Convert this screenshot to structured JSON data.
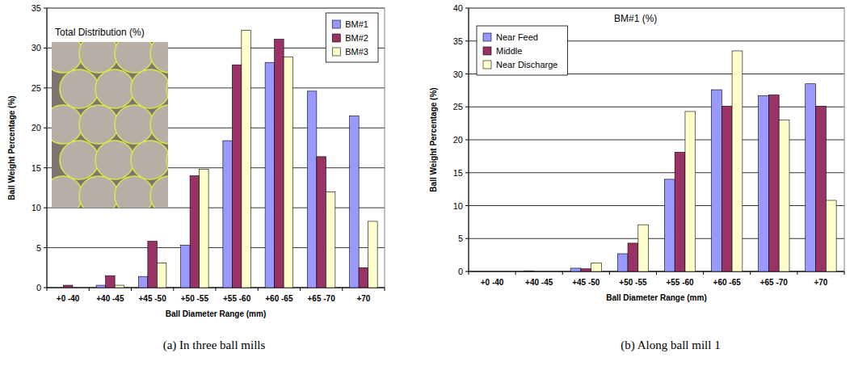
{
  "chart_data": [
    {
      "type": "bar",
      "title": "Total Distribution (%)",
      "caption": "(a) In three ball mills",
      "x_label": "Ball Diameter Range (mm)",
      "y_label": "Ball Weight Percentage (%)",
      "categories": [
        "+0 -40",
        "+40 -45",
        "+45 -50",
        "+50 -55",
        "+55 -60",
        "+60 -65",
        "+65 -70",
        "+70"
      ],
      "series": [
        {
          "name": "BM#1",
          "color": "#9999ff",
          "values": [
            0,
            0.3,
            1.4,
            5.3,
            18.4,
            28.2,
            24.6,
            21.5
          ]
        },
        {
          "name": "BM#2",
          "color": "#993366",
          "values": [
            0.3,
            1.5,
            5.8,
            14,
            27.9,
            31.1,
            16.4,
            2.5
          ]
        },
        {
          "name": "BM#3",
          "color": "#ffffcc",
          "values": [
            0,
            0.3,
            3.1,
            14.8,
            32.2,
            28.9,
            12,
            8.3
          ]
        }
      ],
      "ylim": [
        0,
        35
      ],
      "yticks": [
        0,
        5,
        10,
        15,
        20,
        25,
        30,
        35
      ],
      "grid": true,
      "legend": "upper right"
    },
    {
      "type": "bar",
      "title": "BM#1 (%)",
      "caption": "(b) Along ball mill 1",
      "x_label": "Ball Diameter Range (mm)",
      "y_label": "Ball Weight Percentage (%)",
      "categories": [
        "+0 -40",
        "+40 -45",
        "+45 -50",
        "+50 -55",
        "+55 -60",
        "+60 -65",
        "+65 -70",
        "+70"
      ],
      "series": [
        {
          "name": "Near Feed",
          "color": "#9999ff",
          "values": [
            0,
            0.1,
            0.5,
            2.7,
            14,
            27.6,
            26.7,
            28.5
          ]
        },
        {
          "name": "Middle",
          "color": "#993366",
          "values": [
            0,
            0,
            0.4,
            4.3,
            18.1,
            25.1,
            26.8,
            25.1
          ]
        },
        {
          "name": "Near Discharge",
          "color": "#ffffcc",
          "values": [
            0,
            0,
            1.3,
            7.1,
            24.3,
            33.5,
            23,
            10.8
          ]
        }
      ],
      "ylim": [
        0,
        40
      ],
      "yticks": [
        0,
        5,
        10,
        15,
        20,
        25,
        30,
        35,
        40
      ],
      "grid": true,
      "legend": "upper left"
    }
  ]
}
